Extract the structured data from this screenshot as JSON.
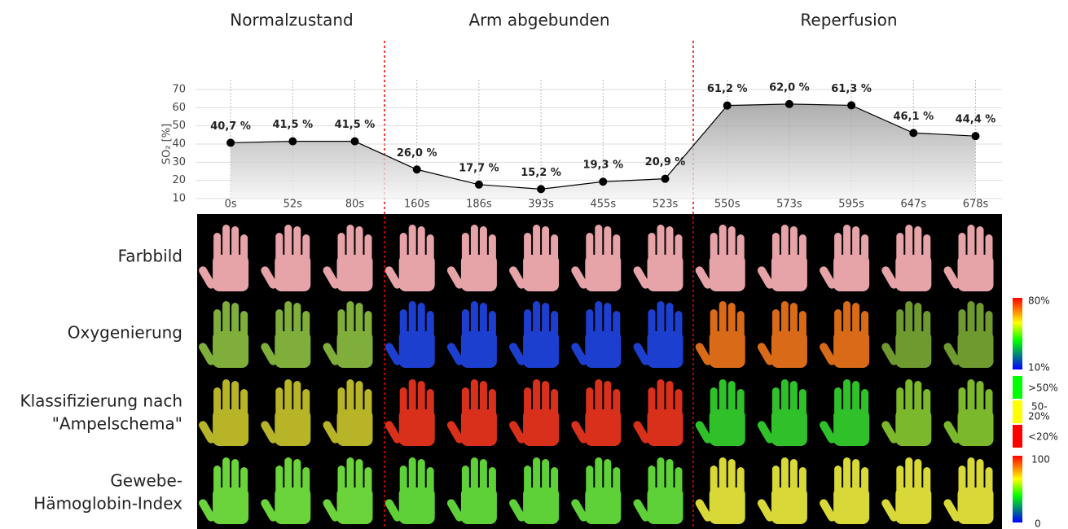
{
  "phases": [
    "Normalzustand",
    "Arm abgebunden",
    "Reperfusion"
  ],
  "rows": [
    "Farbbild",
    "Oxygenierung",
    "Klassifizierung nach",
    "\"Ampelschema\"",
    "Gewebe-",
    "Hämoglobin-Index"
  ],
  "legend": [
    "80%",
    "10%",
    ">50%",
    "50-",
    "20%",
    "<20%",
    "100",
    "0"
  ],
  "chart_data": {
    "type": "line",
    "y_label": "SO₂ [%]",
    "categories": [
      "0s",
      "52s",
      "80s",
      "160s",
      "186s",
      "393s",
      "455s",
      "523s",
      "550s",
      "573s",
      "595s",
      "647s",
      "678s"
    ],
    "series": [
      {
        "name": "SO₂",
        "color": "#000",
        "values": [
          40.7,
          41.5,
          41.5,
          26.0,
          17.7,
          15.2,
          19.3,
          20.9,
          61.2,
          62.0,
          61.3,
          46.1,
          44.4
        ],
        "value_labels": [
          "40,7 %",
          "41,5 %",
          "41,5 %",
          "26,0 %",
          "17,7 %",
          "15,2 %",
          "19,3 %",
          "20,9 %",
          "61,2 %",
          "62,0 %",
          "61,3 %",
          "46,1 %",
          "44,4 %"
        ]
      }
    ],
    "ylim": [
      10,
      70
    ],
    "yticks": [
      10,
      20,
      30,
      40,
      50,
      60,
      70
    ],
    "grid": true
  }
}
